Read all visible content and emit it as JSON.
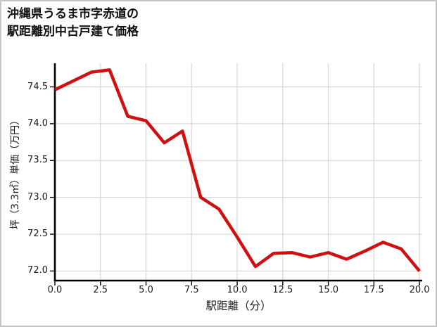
{
  "chart_data": {
    "type": "line",
    "title_lines": [
      "沖縄県うるま市字赤道の",
      "駅距離別中古戸建て価格"
    ],
    "xlabel": "駅距離（分）",
    "ylabel": "坪（3.3㎡）単価（万円）",
    "x": [
      0,
      1,
      2,
      3,
      4,
      5,
      6,
      7,
      8,
      9,
      10,
      11,
      12,
      13,
      14,
      15,
      16,
      17,
      18,
      19,
      20
    ],
    "values": [
      74.46,
      74.58,
      74.7,
      74.73,
      74.1,
      74.04,
      73.74,
      73.9,
      73.0,
      72.84,
      72.46,
      72.06,
      72.24,
      72.25,
      72.19,
      72.25,
      72.16,
      72.27,
      72.39,
      72.3,
      72.0
    ],
    "xticks": [
      0,
      2.5,
      5,
      7.5,
      10,
      12.5,
      15,
      17.5,
      20
    ],
    "xtick_labels": [
      "0.0",
      "2.5",
      "5.0",
      "7.5",
      "10.0",
      "12.5",
      "15.0",
      "17.5",
      "20.0"
    ],
    "yticks": [
      72.0,
      72.5,
      73.0,
      73.5,
      74.0,
      74.5
    ],
    "ytick_labels": [
      "72.0",
      "72.5",
      "73.0",
      "73.5",
      "74.0",
      "74.5"
    ],
    "xlim": [
      0,
      20.15
    ],
    "ylim": [
      71.87,
      74.82
    ],
    "grid": true,
    "legend_position": "none",
    "line_color": "#d01010"
  },
  "colors": {
    "background": "#ffffff",
    "page_border": "#c4c4c4",
    "grid": "#d9d9d9",
    "spine": "#000000",
    "text": "#1a1a1a"
  }
}
